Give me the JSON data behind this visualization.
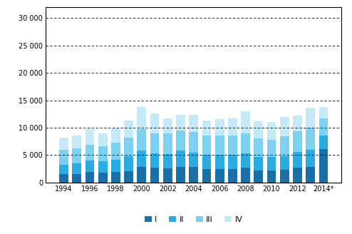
{
  "years": [
    1994,
    1995,
    1996,
    1997,
    1998,
    1999,
    2000,
    2001,
    2002,
    2003,
    2004,
    2005,
    2006,
    2007,
    2008,
    2009,
    2010,
    2011,
    2012,
    2013,
    2014
  ],
  "Q1": [
    1500,
    1600,
    1900,
    1800,
    1900,
    2100,
    2900,
    2700,
    2600,
    2900,
    2900,
    2400,
    2400,
    2400,
    2700,
    2200,
    2200,
    2300,
    2700,
    2900,
    6100
  ],
  "Q2": [
    1700,
    1900,
    2100,
    2100,
    2300,
    2700,
    2900,
    2600,
    2600,
    2900,
    2600,
    2700,
    2700,
    2700,
    2600,
    2500,
    2400,
    2500,
    2900,
    3000,
    2400
  ],
  "Q3": [
    2700,
    2700,
    2900,
    2700,
    3100,
    3400,
    3900,
    3700,
    3700,
    3700,
    3700,
    3400,
    3500,
    3400,
    3600,
    3300,
    3200,
    3600,
    3700,
    4100,
    3200
  ],
  "Q4": [
    2300,
    2300,
    2900,
    2400,
    2600,
    3100,
    4100,
    3600,
    2800,
    2900,
    3100,
    2800,
    3000,
    3200,
    4100,
    3200,
    3300,
    3500,
    2900,
    3600,
    2100
  ],
  "colors": [
    "#1a6fa8",
    "#2aabe2",
    "#7dd0ef",
    "#c5e9f7"
  ],
  "ylim": [
    0,
    32000
  ],
  "yticks": [
    0,
    5000,
    10000,
    15000,
    20000,
    25000,
    30000
  ],
  "ytick_labels": [
    "0",
    "5 000",
    "10 000",
    "15 000",
    "20 000",
    "25 000",
    "30 000"
  ],
  "legend_labels": [
    "I",
    "II",
    "III",
    "IV"
  ],
  "background_color": "#ffffff"
}
